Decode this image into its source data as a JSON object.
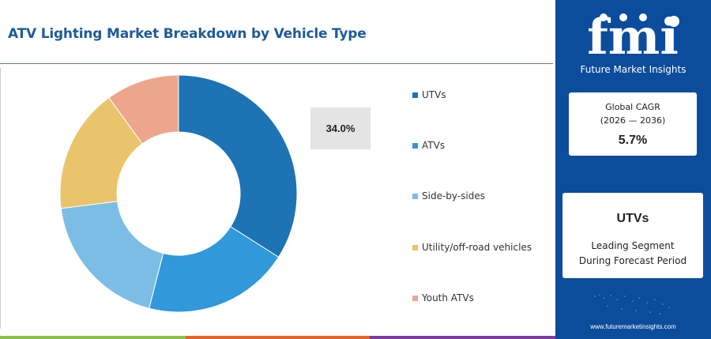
{
  "header": {
    "title": "ATV Lighting Market Breakdown by Vehicle Type"
  },
  "chart_data": {
    "type": "pie",
    "variant": "donut",
    "title": "ATV Lighting Market Breakdown by Vehicle Type",
    "categories": [
      "UTVs",
      "ATVs",
      "Side-by-sides",
      "Utility/off-road vehicles",
      "Youth ATVs"
    ],
    "values": [
      34.0,
      20.0,
      19.0,
      17.0,
      10.0
    ],
    "colors": [
      "#1e73b4",
      "#3098db",
      "#7cbde6",
      "#e9c46a",
      "#eda68b"
    ],
    "highlight_label": "34.0%",
    "legend_position": "right"
  },
  "sidebar": {
    "logo_text": "fmi",
    "logo_subtitle": "Future Market Insights",
    "cagr": {
      "label_line1": "Global CAGR",
      "label_line2": "(2026 — 2036)",
      "value": "5.7%"
    },
    "segment": {
      "name": "UTVs",
      "desc_line1": "Leading Segment",
      "desc_line2": "During Forecast Period"
    },
    "website": "www.futuremarketinsights.com"
  },
  "colors": {
    "title": "#1d5b99",
    "sidebar_bg": "#0b4c9c",
    "bottom_bar": [
      "#8cbf4e",
      "#e0642e",
      "#7c3f9a",
      "#1d5b99"
    ]
  }
}
